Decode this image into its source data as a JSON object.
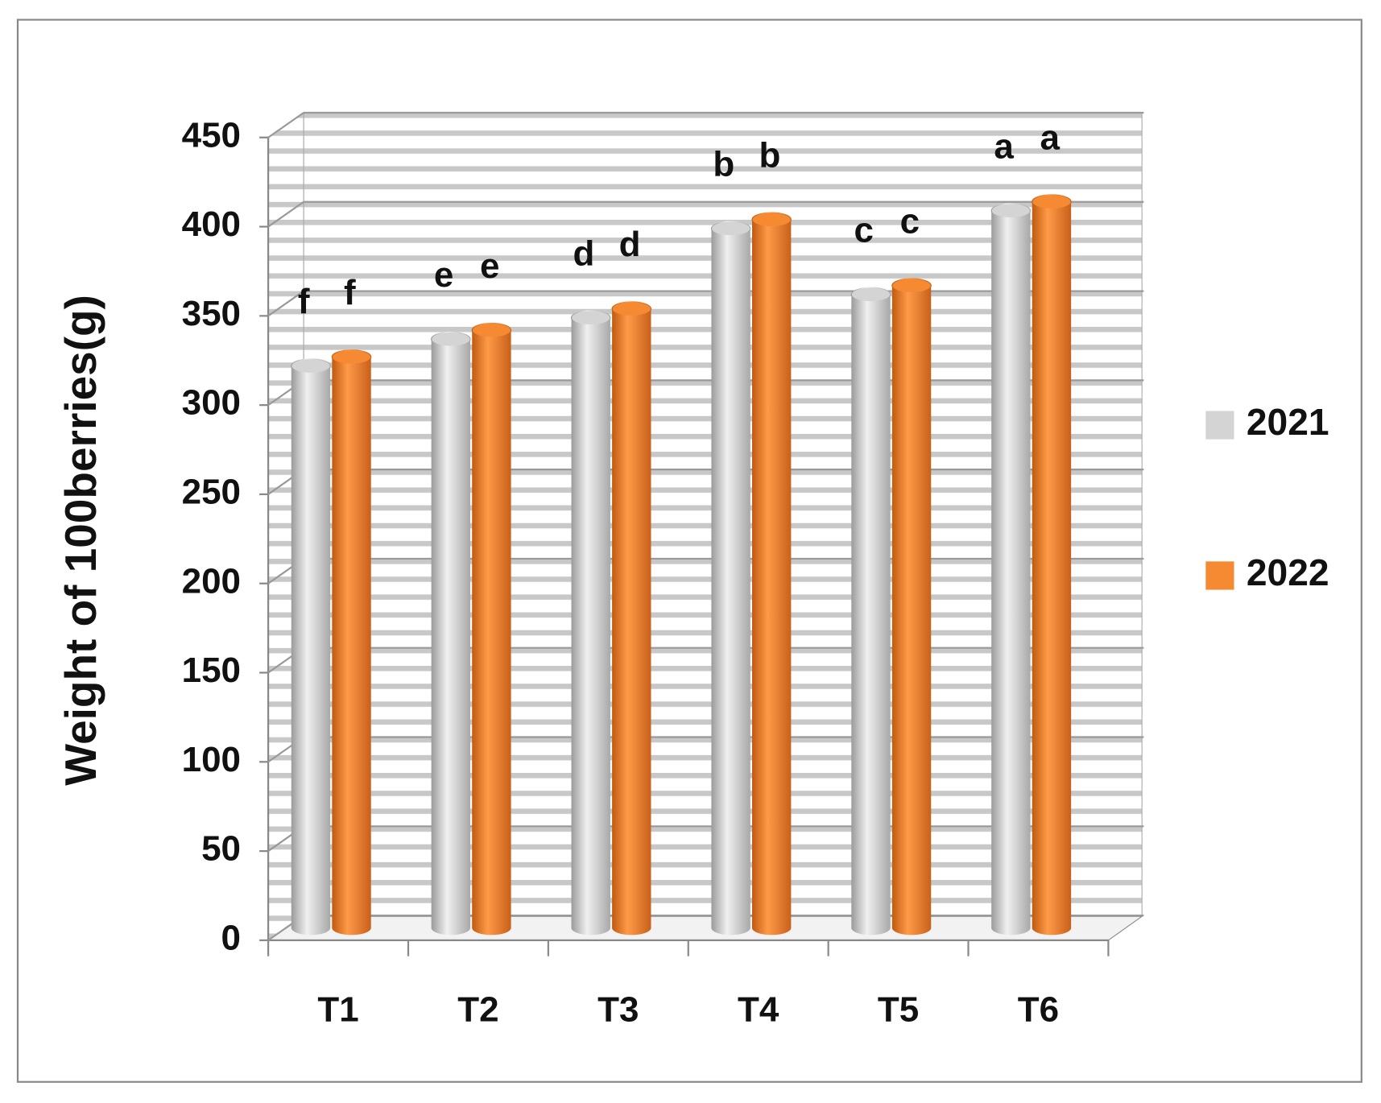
{
  "chart_data": {
    "type": "bar3d",
    "y_label": "Weight of 100berries(g)",
    "categories": [
      "T1",
      "T2",
      "T3",
      "T4",
      "T5",
      "T6"
    ],
    "series": [
      {
        "name": "2021",
        "color": "#d4d4d4",
        "values": [
          315,
          330,
          342,
          392,
          355,
          402
        ],
        "letters": [
          "f",
          "e",
          "d",
          "b",
          "c",
          "a"
        ]
      },
      {
        "name": "2022",
        "color": "#f58a32",
        "values": [
          320,
          335,
          347,
          397,
          360,
          407
        ],
        "letters": [
          "f",
          "e",
          "d",
          "b",
          "c",
          "a"
        ]
      }
    ],
    "ylim": [
      0,
      450
    ],
    "yticks": [
      0,
      50,
      100,
      150,
      200,
      250,
      300,
      350,
      400,
      450
    ],
    "grid": true,
    "legend": "right"
  }
}
